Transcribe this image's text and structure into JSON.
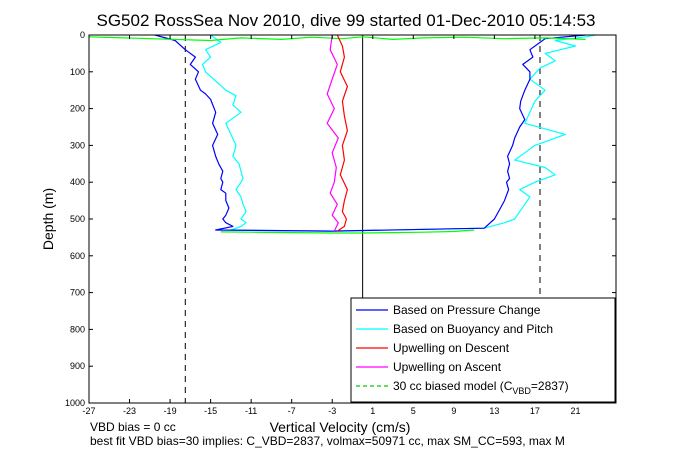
{
  "chart_data": {
    "type": "line",
    "title": "SG502 RossSea Nov 2010, dive 99 started 01-Dec-2010 05:14:53",
    "xlabel": "Vertical Velocity (cm/s)",
    "ylabel": "Depth (m)",
    "xlim": [
      -27,
      25
    ],
    "ylim": [
      0,
      1000
    ],
    "y_reversed": true,
    "grid": false,
    "legend_position": "bottom-right",
    "xticks": [
      -27,
      -23,
      -19,
      -15,
      -11,
      -7,
      -3,
      1,
      5,
      9,
      13,
      17,
      21
    ],
    "yticks": [
      0,
      100,
      200,
      300,
      400,
      500,
      600,
      700,
      800,
      900,
      1000
    ],
    "vertical_zero_line": 0,
    "model_lines_x": [
      -17.5,
      17.5
    ],
    "series": [
      {
        "name": "Based on Pressure Change",
        "color": "#0000ff",
        "profiles": [
          {
            "x": [
              -20.5,
              -18.5,
              -17.5,
              -16.5,
              -17,
              -16.2,
              -16.5,
              -16,
              -15.5,
              -15,
              -14.5,
              -14.8,
              -14.3,
              -14.8,
              -14.5,
              -14.2,
              -13.8,
              -14,
              -13.8,
              -14,
              -13.5,
              -13.5,
              -13.2,
              -13.5,
              -13.8,
              -13.5,
              -12.8,
              -14.5,
              -3
            ],
            "y": [
              0,
              15,
              40,
              60,
              80,
              100,
              120,
              150,
              160,
              175,
              210,
              240,
              270,
              300,
              330,
              350,
              370,
              390,
              400,
              420,
              430,
              450,
              470,
              490,
              500,
              510,
              520,
              530,
              533
            ]
          },
          {
            "x": [
              -3,
              12,
              13,
              13.6,
              14,
              14.4,
              14.2,
              14.5,
              14.3,
              14.5,
              14.3,
              14.8,
              15,
              15.5,
              16,
              15.5,
              15.6,
              16,
              16.5,
              16.5,
              15.8,
              16.8,
              16.5,
              17.5,
              18,
              22
            ],
            "y": [
              533,
              525,
              500,
              470,
              450,
              420,
              400,
              390,
              370,
              350,
              330,
              300,
              280,
              250,
              230,
              200,
              180,
              150,
              120,
              100,
              80,
              60,
              40,
              20,
              10,
              0
            ]
          }
        ]
      },
      {
        "name": "Based on Buoyancy and Pitch",
        "color": "#00ffff",
        "profiles": [
          {
            "x": [
              -15,
              -14,
              -15.5,
              -15,
              -15.8,
              -15.5,
              -13.5,
              -12.5,
              -12.8,
              -12,
              -13.5,
              -13,
              -12.5,
              -12.8,
              -12.2,
              -12,
              -11.8,
              -12,
              -12.5,
              -12,
              -11.8,
              -11.5,
              -12,
              -11.5,
              -12,
              -13,
              -3
            ],
            "y": [
              0,
              20,
              40,
              60,
              80,
              100,
              150,
              165,
              190,
              210,
              240,
              270,
              300,
              330,
              350,
              370,
              390,
              400,
              420,
              440,
              460,
              480,
              500,
              510,
              520,
              530,
              533
            ]
          },
          {
            "x": [
              -3,
              12,
              14,
              15,
              15.5,
              16,
              16.5,
              15.5,
              17,
              19,
              18,
              15,
              16,
              17,
              20,
              16,
              16.5,
              17,
              18,
              16.5,
              17.5,
              19,
              18,
              21,
              19,
              22,
              23
            ],
            "y": [
              533,
              525,
              510,
              500,
              480,
              460,
              440,
              420,
              400,
              380,
              360,
              340,
              320,
              300,
              270,
              240,
              210,
              180,
              150,
              120,
              90,
              70,
              50,
              30,
              15,
              5,
              0
            ]
          }
        ]
      },
      {
        "name": "Upwelling on Descent",
        "color": "#ff0000",
        "profiles": [
          {
            "x": [
              -2.5,
              -2,
              -1.8,
              -2.2,
              -1.5,
              -2,
              -1.8,
              -1.5,
              -2,
              -1.8,
              -2.2,
              -1.5,
              -1.8,
              -2,
              -1.6,
              -1.8,
              -2.5
            ],
            "y": [
              0,
              30,
              60,
              100,
              140,
              180,
              220,
              260,
              300,
              340,
              380,
              420,
              450,
              480,
              500,
              520,
              533
            ]
          }
        ]
      },
      {
        "name": "Upwelling on Ascent",
        "color": "#ff00ff",
        "profiles": [
          {
            "x": [
              -2.8,
              -2.4,
              -3,
              -2.5,
              -3.2,
              -2.8,
              -2.6,
              -3,
              -2.4,
              -3.5,
              -2.8,
              -3.5,
              -3,
              -2.5,
              -3.2,
              -3
            ],
            "y": [
              533,
              510,
              490,
              460,
              430,
              400,
              360,
              320,
              280,
              240,
              200,
              160,
              120,
              80,
              40,
              0
            ]
          }
        ]
      },
      {
        "name": "30 cc biased model (C_VBD=2837)",
        "color": "#00ff00",
        "profiles": [
          {
            "x": [
              -27,
              -15,
              -12,
              -8,
              -5,
              -2,
              0,
              3,
              6,
              10,
              14,
              18,
              22
            ],
            "y": [
              5,
              15,
              8,
              12,
              6,
              10,
              5,
              12,
              8,
              6,
              10,
              8,
              12
            ]
          },
          {
            "x": [
              -14,
              -11,
              -7,
              -3,
              0,
              3,
              6,
              9,
              11
            ],
            "y": [
              535,
              536,
              537,
              538,
              538,
              537,
              536,
              534,
              530
            ]
          }
        ]
      }
    ],
    "legend": [
      {
        "label": "Based on Pressure Change",
        "color": "#0000ff",
        "style": "solid"
      },
      {
        "label": "Based on Buoyancy and Pitch",
        "color": "#00ffff",
        "style": "solid"
      },
      {
        "label": "Upwelling on Descent",
        "color": "#ff0000",
        "style": "solid"
      },
      {
        "label": "Upwelling on Ascent",
        "color": "#ff00ff",
        "style": "solid"
      },
      {
        "label_pre": "30 cc biased model (C",
        "label_sub": "VBD",
        "label_post": "=2837)",
        "color": "#00cc00",
        "style": "dashed"
      }
    ]
  },
  "footer": {
    "line1": "VBD bias = 0 cc",
    "line2": "best fit VBD bias=30 implies: C_VBD=2837, volmax=50971 cc, max SM_CC=593, max M"
  }
}
